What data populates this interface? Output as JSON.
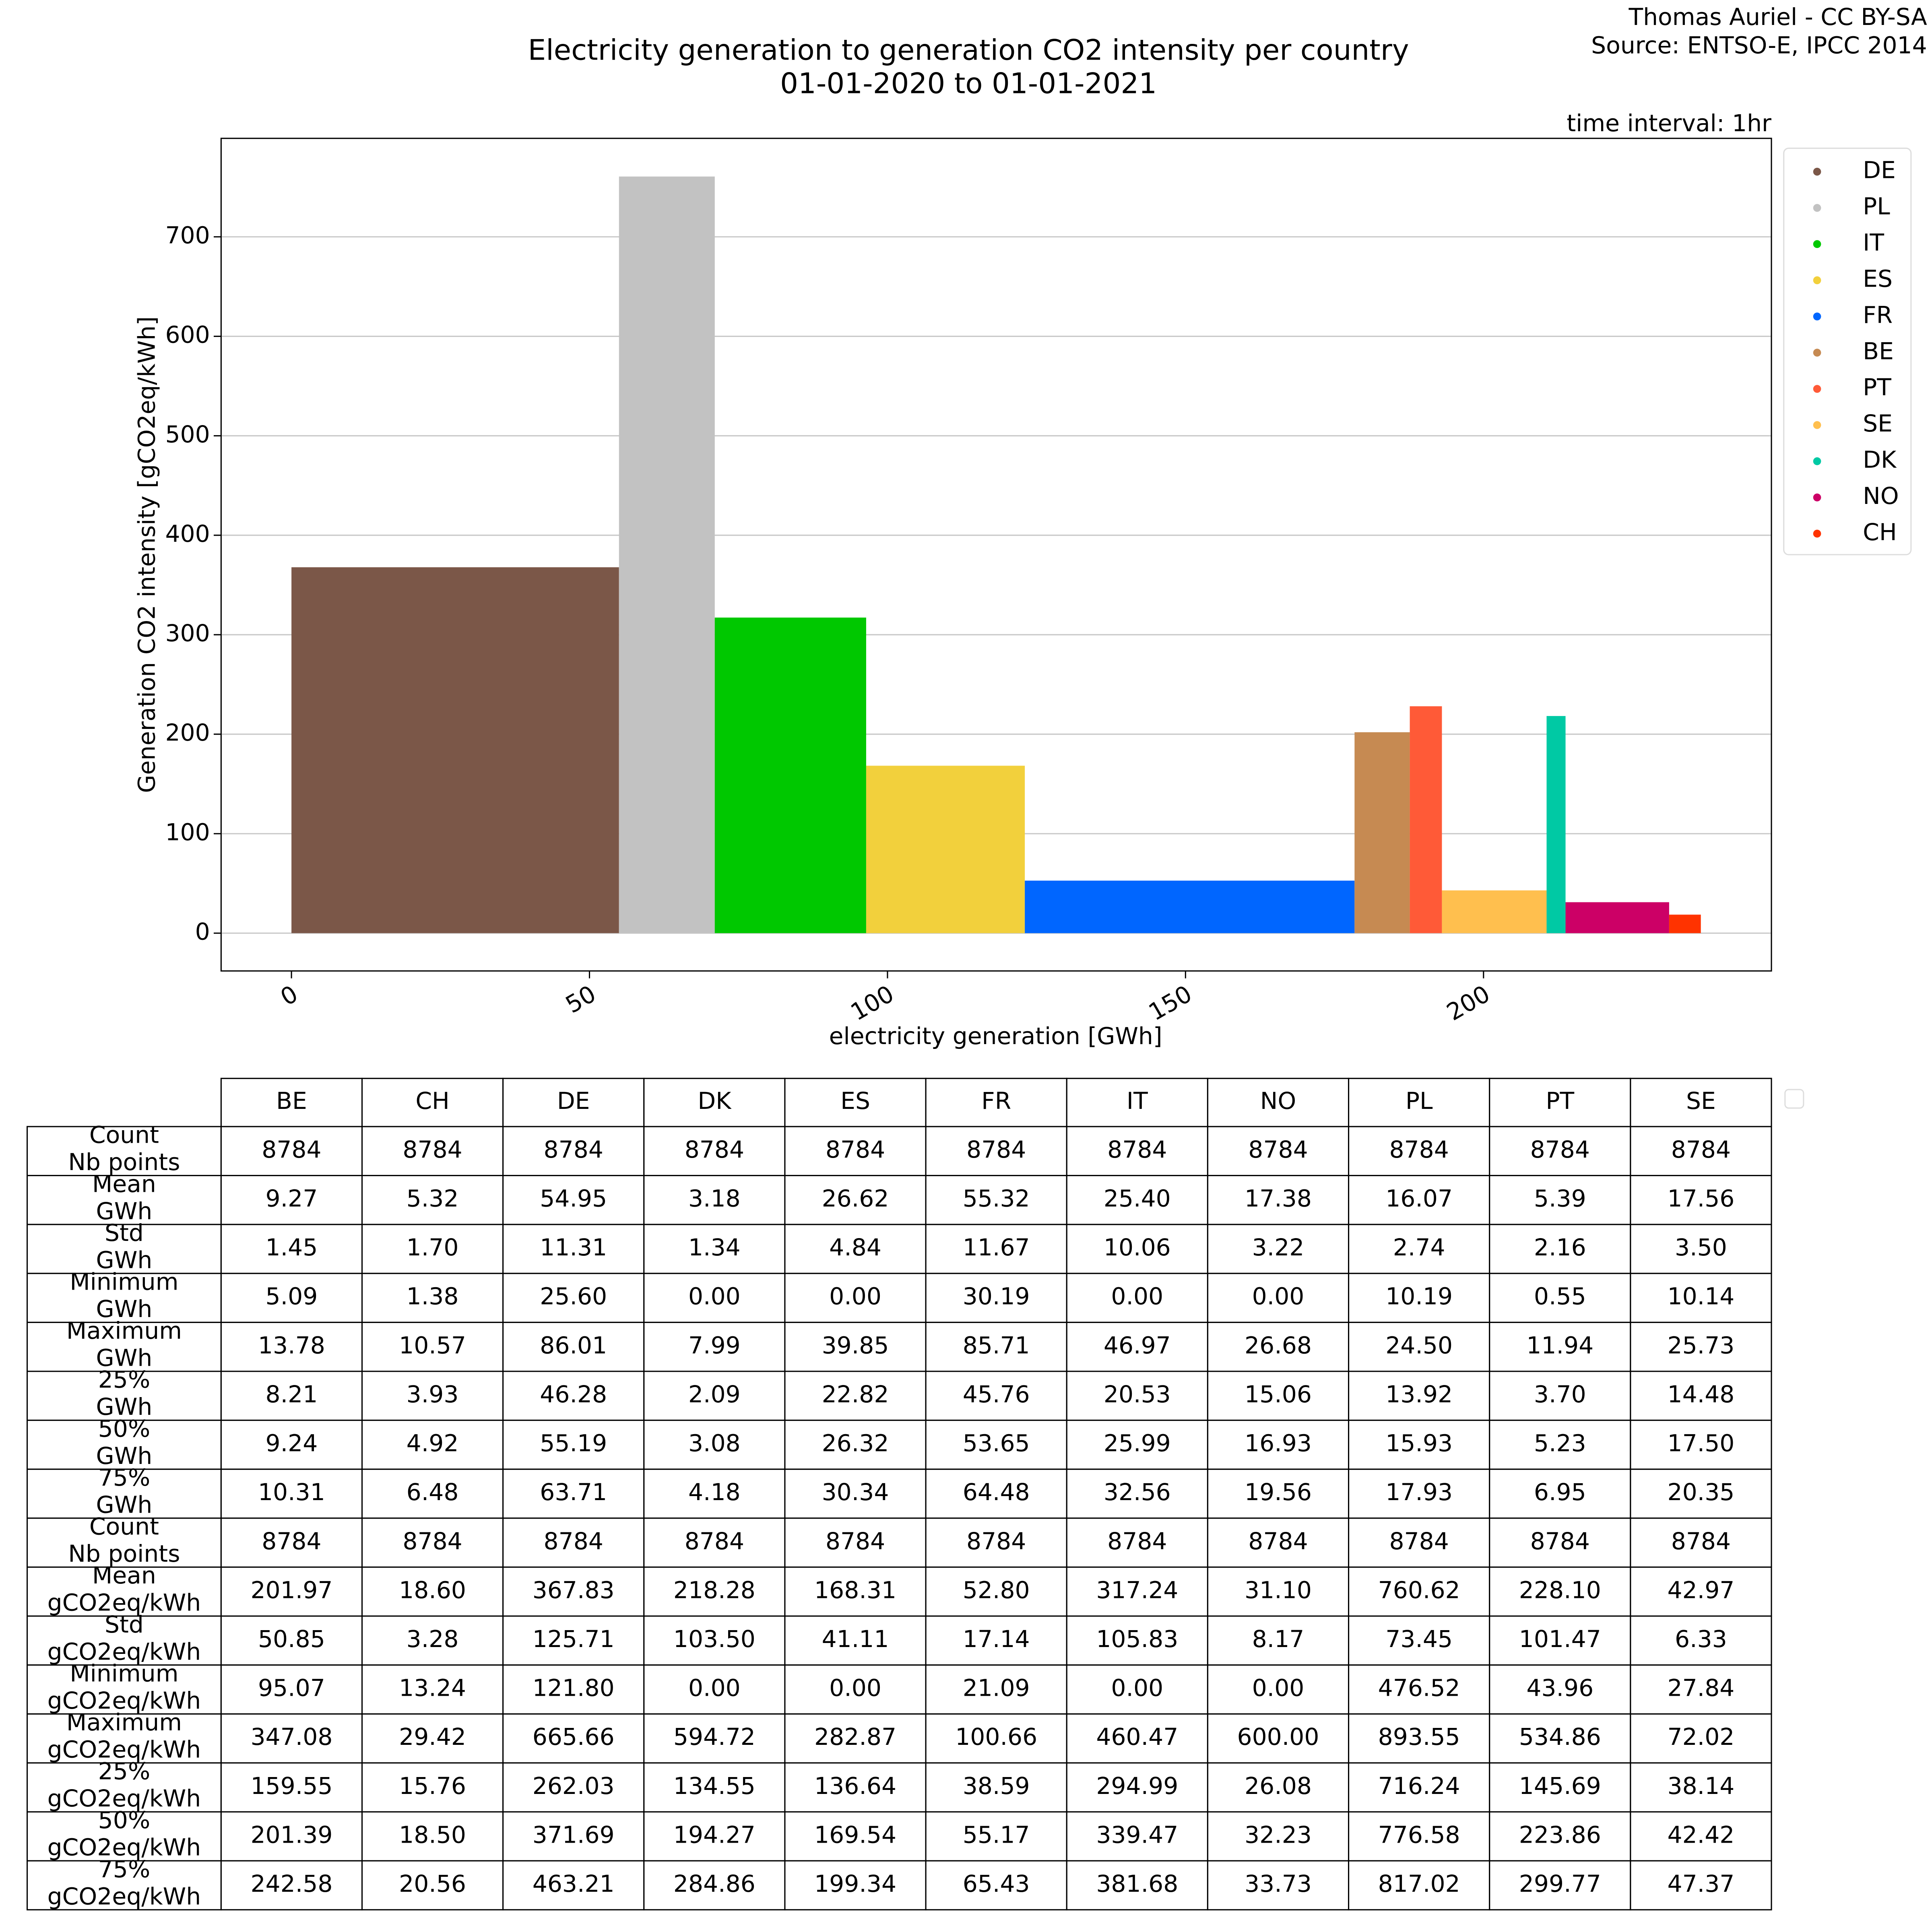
{
  "chart_data": {
    "type": "bar",
    "title": "Electricity generation to generation CO2 intensity per country",
    "subtitle": "01-01-2020 to 01-01-2021",
    "credit": "Thomas Auriel - CC BY-SA",
    "source": "Source: ENTSO-E, IPCC 2014",
    "annotation": "time interval: 1hr",
    "xlabel": "electricity generation [GWh]",
    "ylabel": "Generation CO2 intensity [gCO2eq/kWh]",
    "xlim": [
      -11.8,
      248.3
    ],
    "ylim": [
      -38,
      799
    ],
    "xticks": [
      0,
      50,
      100,
      150,
      200
    ],
    "yticks": [
      0,
      100,
      200,
      300,
      400,
      500,
      600,
      700
    ],
    "grid": true,
    "legend": "outside upper right",
    "series": [
      {
        "name": "DE",
        "color": "#7b5748"
      },
      {
        "name": "PL",
        "color": "#c2c2c2"
      },
      {
        "name": "IT",
        "color": "#00c800"
      },
      {
        "name": "ES",
        "color": "#f2d03c"
      },
      {
        "name": "FR",
        "color": "#0066ff"
      },
      {
        "name": "BE",
        "color": "#c68a52"
      },
      {
        "name": "PT",
        "color": "#ff5a37"
      },
      {
        "name": "SE",
        "color": "#ffbf4e"
      },
      {
        "name": "DK",
        "color": "#00c9a4"
      },
      {
        "name": "NO",
        "color": "#cc0066"
      },
      {
        "name": "CH",
        "color": "#ff3300"
      }
    ]
  },
  "table": {
    "columns": [
      "BE",
      "CH",
      "DE",
      "DK",
      "ES",
      "FR",
      "IT",
      "NO",
      "PL",
      "PT",
      "SE"
    ],
    "rows": [
      {
        "label": [
          "Count",
          "Nb points"
        ],
        "values": [
          "8784",
          "8784",
          "8784",
          "8784",
          "8784",
          "8784",
          "8784",
          "8784",
          "8784",
          "8784",
          "8784"
        ]
      },
      {
        "label": [
          "Mean",
          "GWh"
        ],
        "values": [
          "9.27",
          "5.32",
          "54.95",
          "3.18",
          "26.62",
          "55.32",
          "25.40",
          "17.38",
          "16.07",
          "5.39",
          "17.56"
        ]
      },
      {
        "label": [
          "Std",
          "GWh"
        ],
        "values": [
          "1.45",
          "1.70",
          "11.31",
          "1.34",
          "4.84",
          "11.67",
          "10.06",
          "3.22",
          "2.74",
          "2.16",
          "3.50"
        ]
      },
      {
        "label": [
          "Minimum",
          "GWh"
        ],
        "values": [
          "5.09",
          "1.38",
          "25.60",
          "0.00",
          "0.00",
          "30.19",
          "0.00",
          "0.00",
          "10.19",
          "0.55",
          "10.14"
        ]
      },
      {
        "label": [
          "Maximum",
          "GWh"
        ],
        "values": [
          "13.78",
          "10.57",
          "86.01",
          "7.99",
          "39.85",
          "85.71",
          "46.97",
          "26.68",
          "24.50",
          "11.94",
          "25.73"
        ]
      },
      {
        "label": [
          "25%",
          "GWh"
        ],
        "values": [
          "8.21",
          "3.93",
          "46.28",
          "2.09",
          "22.82",
          "45.76",
          "20.53",
          "15.06",
          "13.92",
          "3.70",
          "14.48"
        ]
      },
      {
        "label": [
          "50%",
          "GWh"
        ],
        "values": [
          "9.24",
          "4.92",
          "55.19",
          "3.08",
          "26.32",
          "53.65",
          "25.99",
          "16.93",
          "15.93",
          "5.23",
          "17.50"
        ]
      },
      {
        "label": [
          "75%",
          "GWh"
        ],
        "values": [
          "10.31",
          "6.48",
          "63.71",
          "4.18",
          "30.34",
          "64.48",
          "32.56",
          "19.56",
          "17.93",
          "6.95",
          "20.35"
        ]
      },
      {
        "label": [
          "Count",
          "Nb points"
        ],
        "values": [
          "8784",
          "8784",
          "8784",
          "8784",
          "8784",
          "8784",
          "8784",
          "8784",
          "8784",
          "8784",
          "8784"
        ]
      },
      {
        "label": [
          "Mean",
          "gCO2eq/kWh"
        ],
        "values": [
          "201.97",
          "18.60",
          "367.83",
          "218.28",
          "168.31",
          "52.80",
          "317.24",
          "31.10",
          "760.62",
          "228.10",
          "42.97"
        ]
      },
      {
        "label": [
          "Std",
          "gCO2eq/kWh"
        ],
        "values": [
          "50.85",
          "3.28",
          "125.71",
          "103.50",
          "41.11",
          "17.14",
          "105.83",
          "8.17",
          "73.45",
          "101.47",
          "6.33"
        ]
      },
      {
        "label": [
          "Minimum",
          "gCO2eq/kWh"
        ],
        "values": [
          "95.07",
          "13.24",
          "121.80",
          "0.00",
          "0.00",
          "21.09",
          "0.00",
          "0.00",
          "476.52",
          "43.96",
          "27.84"
        ]
      },
      {
        "label": [
          "Maximum",
          "gCO2eq/kWh"
        ],
        "values": [
          "347.08",
          "29.42",
          "665.66",
          "594.72",
          "282.87",
          "100.66",
          "460.47",
          "600.00",
          "893.55",
          "534.86",
          "72.02"
        ]
      },
      {
        "label": [
          "25%",
          "gCO2eq/kWh"
        ],
        "values": [
          "159.55",
          "15.76",
          "262.03",
          "134.55",
          "136.64",
          "38.59",
          "294.99",
          "26.08",
          "716.24",
          "145.69",
          "38.14"
        ]
      },
      {
        "label": [
          "50%",
          "gCO2eq/kWh"
        ],
        "values": [
          "201.39",
          "18.50",
          "371.69",
          "194.27",
          "169.54",
          "55.17",
          "339.47",
          "32.23",
          "776.58",
          "223.86",
          "42.42"
        ]
      },
      {
        "label": [
          "75%",
          "gCO2eq/kWh"
        ],
        "values": [
          "242.58",
          "20.56",
          "463.21",
          "284.86",
          "199.34",
          "65.43",
          "381.68",
          "33.73",
          "817.02",
          "299.77",
          "47.37"
        ]
      }
    ]
  }
}
